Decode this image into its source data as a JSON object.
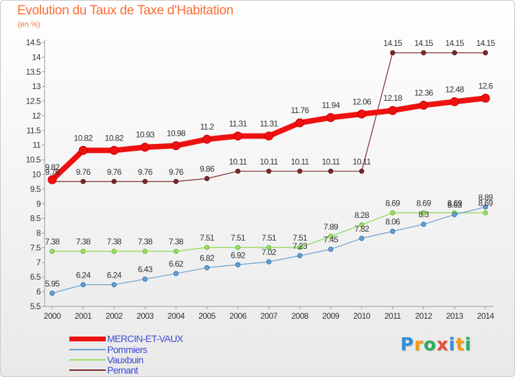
{
  "chart_data": {
    "type": "line",
    "title": "Evolution du Taux de Taxe d'Habitation",
    "subtitle": "(en %)",
    "xlabel": "",
    "ylabel": "",
    "x": [
      "2000",
      "2001",
      "2002",
      "2003",
      "2004",
      "2005",
      "2006",
      "2007",
      "2008",
      "2009",
      "2010",
      "2011",
      "2012",
      "2013",
      "2014"
    ],
    "ylim": [
      5.5,
      14.5
    ],
    "yticks": [
      "5.5",
      "6",
      "6.5",
      "7",
      "7.5",
      "8",
      "8.5",
      "9",
      "9.5",
      "10",
      "10.5",
      "11",
      "11.5",
      "12",
      "12.5",
      "13",
      "13.5",
      "14",
      "14.5"
    ],
    "grid": false,
    "legend_position": "bottom-left",
    "series": [
      {
        "name": "MERCIN-ET-VAUX",
        "color": "#ee1111",
        "values": [
          9.82,
          10.82,
          10.82,
          10.93,
          10.98,
          11.2,
          11.31,
          11.31,
          11.76,
          11.94,
          12.06,
          12.18,
          12.36,
          12.48,
          12.6
        ],
        "labels": [
          "9.82",
          "10.82",
          "10.82",
          "10.93",
          "10.98",
          "11.2",
          "11.31",
          "11.31",
          "11.76",
          "11.94",
          "12.06",
          "12.18",
          "12.36",
          "12.48",
          "12.6"
        ]
      },
      {
        "name": "Pommiers",
        "color": "#6a9fcf",
        "values": [
          5.95,
          6.24,
          6.24,
          6.43,
          6.62,
          6.82,
          6.92,
          7.02,
          7.23,
          7.45,
          7.82,
          8.06,
          8.3,
          8.63,
          8.89
        ],
        "labels": [
          "5.95",
          "6.24",
          "6.24",
          "6.43",
          "6.62",
          "6.82",
          "6.92",
          "7.02",
          "7.23",
          "7.45",
          "7.82",
          "8.06",
          "8.3",
          "8.63",
          "8.89"
        ]
      },
      {
        "name": "Vauxbuin",
        "color": "#99dd66",
        "values": [
          7.38,
          7.38,
          7.38,
          7.38,
          7.38,
          7.51,
          7.51,
          7.51,
          7.51,
          7.89,
          8.28,
          8.69,
          8.69,
          8.69,
          8.69
        ],
        "labels": [
          "7.38",
          "7.38",
          "7.38",
          "7.38",
          "7.38",
          "7.51",
          "7.51",
          "7.51",
          "7.51",
          "7.89",
          "8.28",
          "8.69",
          "8.69",
          "8.69",
          "8.69"
        ]
      },
      {
        "name": "Pernant",
        "color": "#7a2a2a",
        "values": [
          9.76,
          9.76,
          9.76,
          9.76,
          9.76,
          9.86,
          10.11,
          10.11,
          10.11,
          10.11,
          10.11,
          14.15,
          14.15,
          14.15,
          14.15
        ],
        "labels": [
          "9.76",
          "9.76",
          "9.76",
          "9.76",
          "9.76",
          "9.86",
          "10.11",
          "10.11",
          "10.11",
          "10.11",
          "10.11",
          "14.15",
          "14.15",
          "14.15",
          "14.15"
        ]
      }
    ]
  },
  "legend": {
    "items": [
      "MERCIN-ET-VAUX",
      "Pommiers",
      "Vauxbuin",
      "Pernant"
    ],
    "label_colors": [
      "#3d4ad0",
      "#3d4ad0",
      "#3d4ad0",
      "#3d4ad0"
    ]
  },
  "logo": {
    "letters": [
      "P",
      "r",
      "o",
      "x",
      "i",
      "t",
      "i"
    ],
    "colors": [
      "#2f8fd8",
      "#f39c12",
      "#27ae60",
      "#e74c3c",
      "#2f8fd8",
      "#f39c12",
      "#27ae60"
    ]
  }
}
